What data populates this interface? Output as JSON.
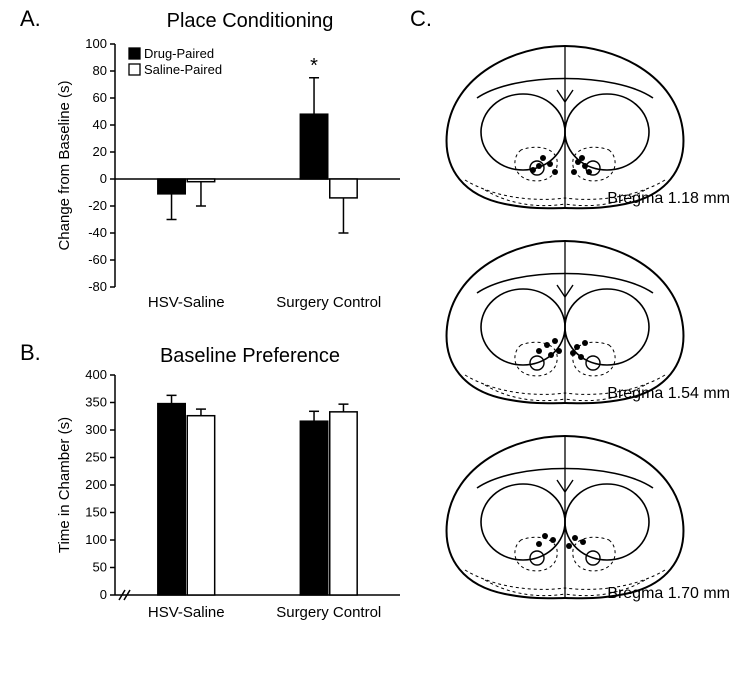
{
  "labels": {
    "panelA": "A.",
    "panelB": "B.",
    "panelC": "C."
  },
  "panelA": {
    "type": "bar",
    "title": "Place Conditioning",
    "title_fontsize": 20,
    "ylabel": "Change from Baseline (s)",
    "label_fontsize": 15,
    "categories": [
      "HSV-Saline",
      "Surgery Control"
    ],
    "series": [
      {
        "name": "Drug-Paired",
        "fill": "#000000",
        "stroke": "#000000"
      },
      {
        "name": "Saline-Paired",
        "fill": "#ffffff",
        "stroke": "#000000"
      }
    ],
    "values": [
      [
        -11,
        48
      ],
      [
        -2,
        -14
      ]
    ],
    "errors": [
      [
        19,
        27
      ],
      [
        18,
        26
      ]
    ],
    "significance_marker": {
      "symbol": "*",
      "group_index": 1,
      "series_index": 0
    },
    "ylim": [
      -80,
      100
    ],
    "ytick_step": 20,
    "bar_width": 0.35,
    "group_gap": 1.2,
    "axis_color": "#000000",
    "background_color": "#ffffff",
    "grid": false
  },
  "panelB": {
    "type": "bar",
    "title": "Baseline Preference",
    "title_fontsize": 20,
    "ylabel": "Time in Chamber (s)",
    "label_fontsize": 15,
    "categories": [
      "HSV-Saline",
      "Surgery Control"
    ],
    "series": [
      {
        "name": "Drug-Paired",
        "fill": "#000000",
        "stroke": "#000000"
      },
      {
        "name": "Saline-Paired",
        "fill": "#ffffff",
        "stroke": "#000000"
      }
    ],
    "values": [
      [
        348,
        316
      ],
      [
        326,
        333
      ]
    ],
    "errors": [
      [
        15,
        18
      ],
      [
        12,
        14
      ]
    ],
    "ylim": [
      0,
      400
    ],
    "ytick_step": 50,
    "bar_width": 0.35,
    "group_gap": 1.2,
    "x_axis_break": true,
    "axis_color": "#000000",
    "background_color": "#ffffff",
    "grid": false
  },
  "panelC": {
    "type": "diagram-series",
    "labels": [
      "Bregma 1.18 mm",
      "Bregma 1.54 mm",
      "Bregma 1.70 mm"
    ],
    "label_fontsize": 16,
    "outline_stroke": "#000000",
    "outline_stroke_width": 2,
    "dashed_stroke_dasharray": "3,3",
    "marker_fill": "#000000",
    "marker_radius": 3,
    "marker_positions": [
      [
        [
          118,
          118
        ],
        [
          125,
          124
        ],
        [
          114,
          126
        ],
        [
          130,
          132
        ],
        [
          108,
          130
        ],
        [
          153,
          122
        ],
        [
          160,
          126
        ],
        [
          149,
          132
        ],
        [
          157,
          118
        ],
        [
          164,
          132
        ]
      ],
      [
        [
          122,
          110
        ],
        [
          130,
          106
        ],
        [
          114,
          116
        ],
        [
          126,
          120
        ],
        [
          134,
          116
        ],
        [
          152,
          112
        ],
        [
          160,
          108
        ],
        [
          148,
          118
        ],
        [
          156,
          122
        ]
      ],
      [
        [
          120,
          106
        ],
        [
          128,
          110
        ],
        [
          114,
          114
        ],
        [
          150,
          108
        ],
        [
          158,
          112
        ],
        [
          144,
          116
        ]
      ]
    ],
    "section_width": 280,
    "section_height": 180
  }
}
